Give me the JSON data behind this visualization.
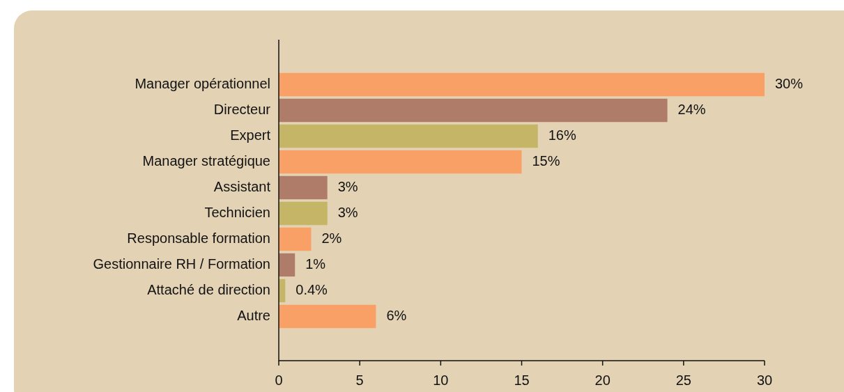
{
  "chart_data": {
    "type": "bar",
    "orientation": "horizontal",
    "categories": [
      "Manager opérationnel",
      "Directeur",
      "Expert",
      "Manager stratégique",
      "Assistant",
      "Technicien",
      "Responsable formation",
      "Gestionnaire RH / Formation",
      "Attaché de direction",
      "Autre"
    ],
    "values": [
      30,
      24,
      16,
      15,
      3,
      3,
      2,
      1,
      0.4,
      6
    ],
    "value_labels": [
      "30%",
      "24%",
      "16%",
      "15%",
      "3%",
      "3%",
      "2%",
      "1%",
      "0.4%",
      "6%"
    ],
    "colors": [
      "#f9a066",
      "#b07c6a",
      "#c5b567",
      "#f9a066",
      "#b07c6a",
      "#c5b567",
      "#f9a066",
      "#b07c6a",
      "#c5b567",
      "#f9a066"
    ],
    "xlim": [
      0,
      30
    ],
    "xticks": [
      0,
      5,
      10,
      15,
      20,
      25,
      30
    ],
    "grid": false,
    "legend": false
  }
}
